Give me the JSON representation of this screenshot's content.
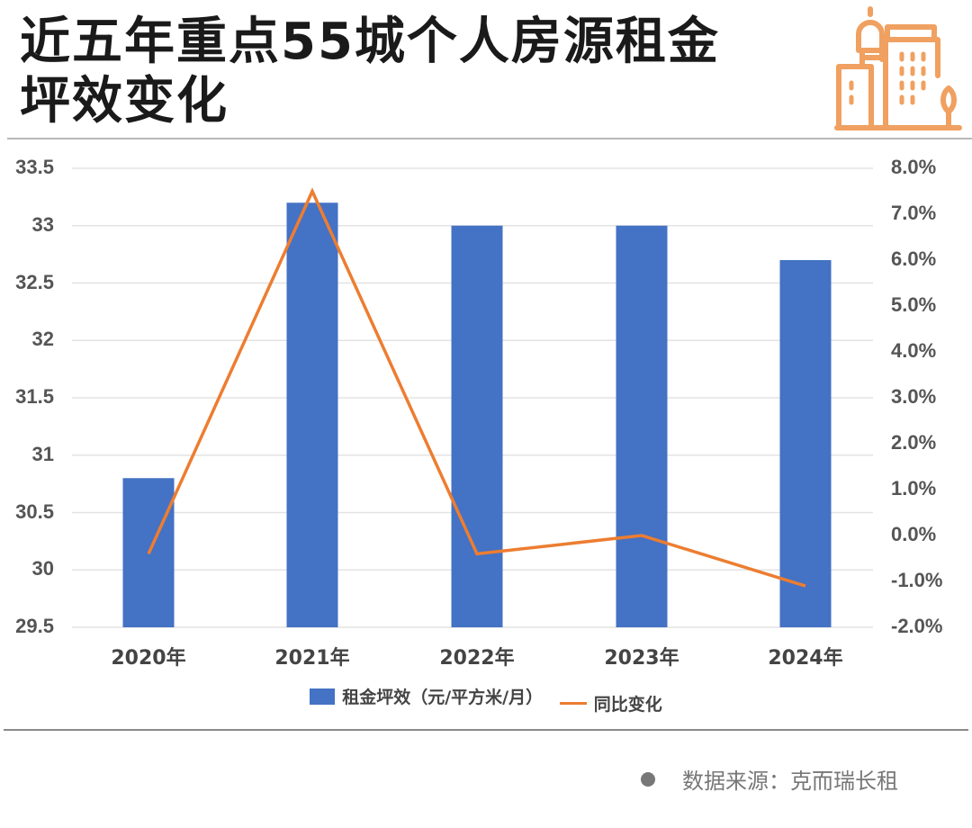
{
  "title": {
    "line1": "近五年重点55城个人房源租金",
    "line2": "坪效变化"
  },
  "logo": {
    "icon": "city-buildings-icon",
    "color": "#f0a060"
  },
  "source": {
    "label": "数据来源：克而瑞长租"
  },
  "colors": {
    "bar": "#4472c4",
    "line": "#ed7d31",
    "grid": "#e3e3e3"
  },
  "chart_data": {
    "type": "bar+line",
    "title": "近五年重点55城个人房源租金坪效变化",
    "categories": [
      "2020年",
      "2021年",
      "2022年",
      "2023年",
      "2024年"
    ],
    "series": [
      {
        "name": "租金坪效（元/平方米/月）",
        "type": "bar",
        "axis": "left",
        "values": [
          30.8,
          33.2,
          33.0,
          33.0,
          32.7
        ]
      },
      {
        "name": "同比变化",
        "type": "line",
        "axis": "right",
        "values": [
          -0.4,
          7.5,
          -0.4,
          0.0,
          -1.1
        ],
        "unit": "%"
      }
    ],
    "y_left": {
      "min": 29.5,
      "max": 33.5,
      "step": 0.5,
      "ticks": [
        "33.5",
        "33",
        "32.5",
        "32",
        "31.5",
        "31",
        "30.5",
        "30",
        "29.5"
      ]
    },
    "y_right": {
      "min": -2.0,
      "max": 8.0,
      "step": 1.0,
      "ticks": [
        "8.0%",
        "7.0%",
        "6.0%",
        "5.0%",
        "4.0%",
        "3.0%",
        "2.0%",
        "1.0%",
        "0.0%",
        "-1.0%",
        "-2.0%"
      ]
    },
    "grid": true,
    "legend_position": "bottom"
  }
}
